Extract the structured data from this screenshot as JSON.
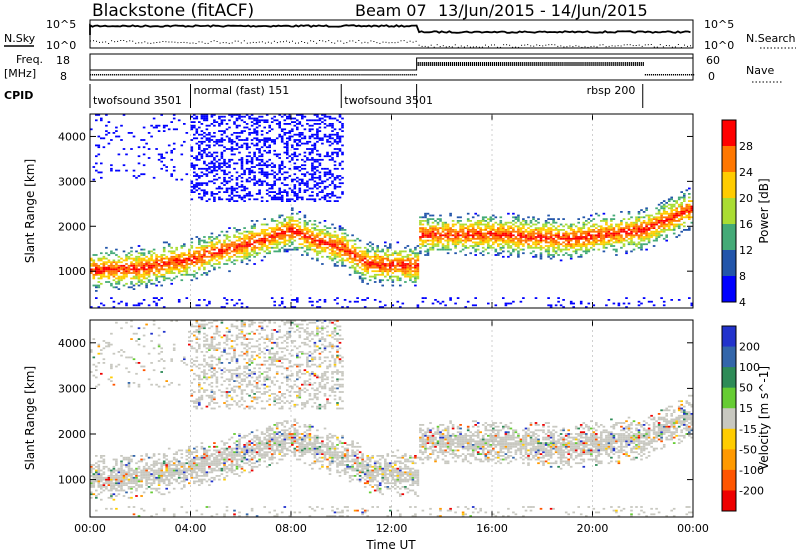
{
  "header": {
    "station": "Blackstone (fitACF)",
    "beam": "Beam 07",
    "dates": "13/Jun/2015 - 14/Jun/2015"
  },
  "top_panels": {
    "nsky_label": "N.Sky",
    "nsearch_label": "N.Search",
    "freq_label_1": "Freq.",
    "freq_label_2": "[MHz]",
    "nave_label": "Nave",
    "cpid_label": "CPID",
    "noise_ticks": [
      "10^5",
      "10^0"
    ],
    "freq_ticks": [
      "18",
      "8"
    ],
    "nave_ticks": [
      "60",
      "0"
    ],
    "cpid_segments": [
      {
        "label": "twofsound 3501",
        "start_h": 0,
        "end_h": 4
      },
      {
        "label": "normal (fast) 151",
        "start_h": 4,
        "end_h": 10
      },
      {
        "label": "twofsound 3501",
        "start_h": 10,
        "end_h": 13
      },
      {
        "label": "rbsp 200",
        "start_h": 13,
        "end_h": 22
      }
    ]
  },
  "chart_data": [
    {
      "type": "heatmap",
      "panel": "power",
      "ylabel": "Slant Range [km]",
      "xlabel": "Time UT",
      "xlim": [
        0,
        24
      ],
      "ylim": [
        180,
        4500
      ],
      "x_ticks": [
        "00:00",
        "04:00",
        "08:00",
        "12:00",
        "16:00",
        "20:00",
        "00:00"
      ],
      "y_ticks": [
        1000,
        2000,
        3000,
        4000
      ],
      "colorbar": {
        "label": "Power [dB]",
        "ticks": [
          "28",
          "24",
          "20",
          "16",
          "12",
          "8",
          "4"
        ],
        "colors": [
          "#ff0000",
          "#ff7700",
          "#ffcc00",
          "#aadd33",
          "#44aa77",
          "#2255aa",
          "#0000ff"
        ]
      },
      "echo_band": [
        {
          "t": 0,
          "r": 1000
        },
        {
          "t": 2,
          "r": 1050
        },
        {
          "t": 4,
          "r": 1250
        },
        {
          "t": 6,
          "r": 1550
        },
        {
          "t": 8,
          "r": 1900
        },
        {
          "t": 9,
          "r": 1650
        },
        {
          "t": 10,
          "r": 1500
        },
        {
          "t": 11,
          "r": 1150
        },
        {
          "t": 13,
          "r": 1100
        },
        {
          "t": 13,
          "r": 1800
        },
        {
          "t": 16,
          "r": 1800
        },
        {
          "t": 19,
          "r": 1700
        },
        {
          "t": 22,
          "r": 1900
        },
        {
          "t": 24,
          "r": 2400
        }
      ]
    },
    {
      "type": "heatmap",
      "panel": "velocity",
      "ylabel": "Slant Range [km]",
      "xlabel": "Time UT",
      "xlim": [
        0,
        24
      ],
      "ylim": [
        180,
        4500
      ],
      "x_ticks": [
        "00:00",
        "04:00",
        "08:00",
        "12:00",
        "16:00",
        "20:00",
        "00:00"
      ],
      "y_ticks": [
        1000,
        2000,
        3000,
        4000
      ],
      "colorbar": {
        "label": "Velocity [m s^-1]",
        "ticks": [
          "200",
          "100",
          "50",
          "15",
          "-15",
          "-50",
          "-100",
          "-200"
        ],
        "colors": [
          "#2233cc",
          "#3366aa",
          "#2e8b57",
          "#66cc33",
          "#c8c8c0",
          "#ffcc00",
          "#ff9900",
          "#ff5500",
          "#ee0000"
        ]
      }
    }
  ]
}
